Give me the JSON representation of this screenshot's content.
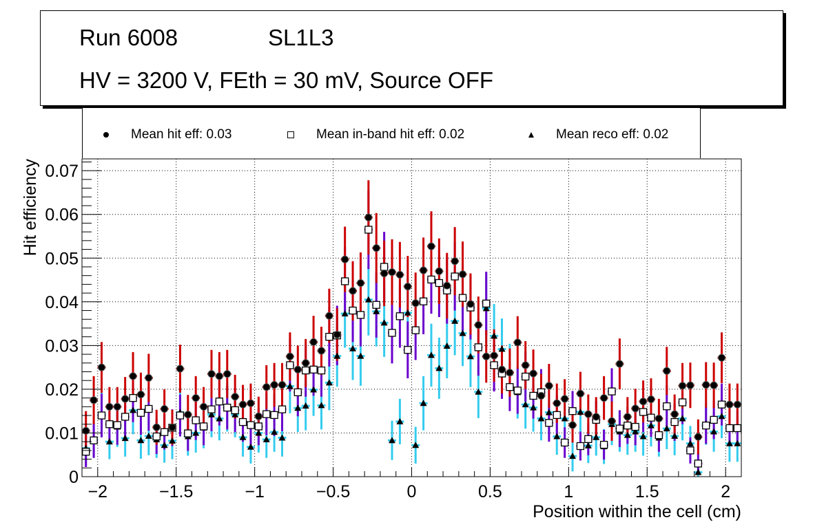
{
  "title_box": {
    "line1_left": "Run 6008",
    "line1_right": "SL1L3",
    "line2": "HV = 3200 V, FEth = 30 mV, Source OFF"
  },
  "legend": {
    "items": [
      {
        "marker": "filled-circle",
        "label": "Mean hit  eff: 0.03"
      },
      {
        "marker": "open-square",
        "label": "Mean in-band hit eff: 0.02"
      },
      {
        "marker": "filled-triangle",
        "label": "Mean reco eff: 0.02"
      }
    ]
  },
  "chart_data": {
    "type": "scatter",
    "title": "Run 6008 SL1L3 — HV = 3200 V, FEth = 30 mV, Source OFF",
    "xlabel": "Position within the cell (cm)",
    "ylabel": "Hit efficiency",
    "xlim": [
      -2.1,
      2.1
    ],
    "ylim": [
      0,
      0.0727
    ],
    "xticks": [
      -2,
      -1.5,
      -1,
      -0.5,
      0,
      0.5,
      1,
      1.5,
      2
    ],
    "xtick_labels": [
      "−2",
      "−1.5",
      "−1",
      "−0.5",
      "0",
      "0.5",
      "1",
      "1.5",
      "2"
    ],
    "yticks": [
      0,
      0.01,
      0.02,
      0.03,
      0.04,
      0.05,
      0.06,
      0.07
    ],
    "ytick_labels": [
      "0",
      "0.01",
      "0.02",
      "0.03",
      "0.04",
      "0.05",
      "0.06",
      "0.07"
    ],
    "grid": true,
    "legend_position": "top",
    "x": [
      -2.075,
      -2.025,
      -1.975,
      -1.925,
      -1.875,
      -1.825,
      -1.775,
      -1.725,
      -1.675,
      -1.625,
      -1.575,
      -1.525,
      -1.475,
      -1.425,
      -1.375,
      -1.325,
      -1.275,
      -1.225,
      -1.175,
      -1.125,
      -1.075,
      -1.025,
      -0.975,
      -0.925,
      -0.875,
      -0.825,
      -0.775,
      -0.725,
      -0.675,
      -0.625,
      -0.575,
      -0.525,
      -0.475,
      -0.425,
      -0.375,
      -0.325,
      -0.275,
      -0.225,
      -0.175,
      -0.125,
      -0.075,
      -0.025,
      0.025,
      0.075,
      0.125,
      0.175,
      0.225,
      0.275,
      0.325,
      0.375,
      0.425,
      0.475,
      0.525,
      0.575,
      0.625,
      0.675,
      0.725,
      0.775,
      0.825,
      0.875,
      0.925,
      0.975,
      1.025,
      1.075,
      1.125,
      1.175,
      1.225,
      1.275,
      1.325,
      1.375,
      1.425,
      1.475,
      1.525,
      1.575,
      1.625,
      1.675,
      1.725,
      1.775,
      1.825,
      1.875,
      1.925,
      1.975,
      2.025,
      2.075
    ],
    "series": [
      {
        "name": "Mean hit  eff: 0.03",
        "marker": "filled-circle",
        "error_color": "#cc0000",
        "values": [
          0.0105,
          0.0175,
          0.025,
          0.016,
          0.016,
          0.0178,
          0.023,
          0.0188,
          0.0226,
          0.0113,
          0.0155,
          0.0113,
          0.0247,
          0.0142,
          0.018,
          0.016,
          0.0235,
          0.023,
          0.0235,
          0.0183,
          0.0165,
          0.0168,
          0.0138,
          0.0205,
          0.021,
          0.021,
          0.0275,
          0.0245,
          0.026,
          0.0308,
          0.0288,
          0.0368,
          0.0325,
          0.0497,
          0.0425,
          0.0443,
          0.0593,
          0.0523,
          0.0465,
          0.0468,
          0.0462,
          0.0435,
          0.0397,
          0.0472,
          0.0527,
          0.047,
          0.0437,
          0.0493,
          0.0463,
          0.0395,
          0.0347,
          0.0275,
          0.0277,
          0.0245,
          0.0238,
          0.0307,
          0.0255,
          0.0236,
          0.0185,
          0.0208,
          0.0168,
          0.0178,
          0.0118,
          0.019,
          0.0143,
          0.0137,
          0.018,
          0.0127,
          0.0258,
          0.0137,
          0.0156,
          0.0172,
          0.0177,
          0.0133,
          0.0242,
          0.0143,
          0.0208,
          0.0209,
          0.0091,
          0.021,
          0.0209,
          0.0272,
          0.0165,
          0.0165
        ],
        "errors": [
          0.0045,
          0.0055,
          0.0058,
          0.0045,
          0.0045,
          0.005,
          0.0055,
          0.005,
          0.0055,
          0.004,
          0.0045,
          0.004,
          0.0055,
          0.0045,
          0.005,
          0.0045,
          0.0055,
          0.0055,
          0.0055,
          0.005,
          0.0045,
          0.0045,
          0.0045,
          0.005,
          0.005,
          0.005,
          0.0055,
          0.0055,
          0.0055,
          0.006,
          0.0055,
          0.0062,
          0.006,
          0.0075,
          0.0068,
          0.007,
          0.0085,
          0.008,
          0.0075,
          0.0075,
          0.0075,
          0.007,
          0.007,
          0.0075,
          0.008,
          0.0075,
          0.0075,
          0.0078,
          0.0075,
          0.007,
          0.0065,
          0.006,
          0.006,
          0.0055,
          0.0055,
          0.006,
          0.0055,
          0.0055,
          0.005,
          0.005,
          0.0045,
          0.0045,
          0.004,
          0.005,
          0.0045,
          0.0045,
          0.005,
          0.0045,
          0.0058,
          0.0045,
          0.0045,
          0.0048,
          0.0048,
          0.0045,
          0.0055,
          0.0045,
          0.0052,
          0.0052,
          0.004,
          0.0052,
          0.0052,
          0.0058,
          0.0048,
          0.0048
        ]
      },
      {
        "name": "Mean in-band hit eff: 0.02",
        "marker": "open-square",
        "error_color": "#6a00cc",
        "values": [
          0.0057,
          0.0083,
          0.014,
          0.012,
          0.0118,
          0.0137,
          0.018,
          0.0146,
          0.0155,
          0.0092,
          0.0102,
          0.0112,
          0.014,
          0.0099,
          0.0129,
          0.0115,
          0.0154,
          0.0172,
          0.0158,
          0.0152,
          0.0125,
          0.0118,
          0.0115,
          0.0143,
          0.0141,
          0.0154,
          0.0255,
          0.0193,
          0.0243,
          0.0245,
          0.0243,
          0.032,
          0.0323,
          0.0447,
          0.038,
          0.037,
          0.0565,
          0.0393,
          0.048,
          0.0329,
          0.0367,
          0.029,
          0.0335,
          0.0401,
          0.0451,
          0.0443,
          0.0426,
          0.0458,
          0.0409,
          0.0387,
          0.0296,
          0.0396,
          0.0255,
          0.0236,
          0.0205,
          0.0197,
          0.0229,
          0.0185,
          0.0193,
          0.0123,
          0.0141,
          0.0078,
          0.015,
          0.007,
          0.0086,
          0.013,
          0.0073,
          0.0195,
          0.011,
          0.0117,
          0.0114,
          0.0148,
          0.0135,
          0.0095,
          0.0161,
          0.0125,
          0.017,
          0.006,
          0.003,
          0.0117,
          0.013,
          0.0165,
          0.0111,
          0.0111
        ],
        "errors": [
          0.0035,
          0.004,
          0.005,
          0.0045,
          0.0045,
          0.0048,
          0.0055,
          0.005,
          0.005,
          0.004,
          0.004,
          0.0042,
          0.0048,
          0.004,
          0.0045,
          0.0043,
          0.005,
          0.0055,
          0.005,
          0.005,
          0.0045,
          0.0045,
          0.0043,
          0.0048,
          0.0048,
          0.005,
          0.006,
          0.0055,
          0.006,
          0.006,
          0.006,
          0.0068,
          0.0068,
          0.0078,
          0.0072,
          0.0072,
          0.009,
          0.0075,
          0.008,
          0.007,
          0.0072,
          0.0065,
          0.0068,
          0.0075,
          0.0078,
          0.0078,
          0.0076,
          0.0078,
          0.0075,
          0.0073,
          0.0065,
          0.0073,
          0.006,
          0.0058,
          0.0055,
          0.0053,
          0.0057,
          0.0052,
          0.0053,
          0.0043,
          0.0045,
          0.0035,
          0.0046,
          0.0033,
          0.0037,
          0.0043,
          0.0034,
          0.0053,
          0.0042,
          0.0042,
          0.0042,
          0.0046,
          0.0044,
          0.0038,
          0.0048,
          0.0043,
          0.005,
          0.003,
          0.0025,
          0.0042,
          0.0044,
          0.0048,
          0.0041,
          0.0041
        ]
      },
      {
        "name": "Mean reco eff: 0.02",
        "marker": "filled-triangle",
        "error_color": "#33ccee",
        "values": [
          0.0065,
          0.0085,
          0.0142,
          0.008,
          0.0114,
          0.0088,
          0.0152,
          0.0083,
          0.0093,
          0.0085,
          0.0072,
          0.0082,
          0.0147,
          0.0092,
          0.01,
          0.0112,
          0.0142,
          0.0133,
          0.0158,
          0.0142,
          0.009,
          0.0068,
          0.01,
          0.0085,
          0.0102,
          0.0089,
          0.0207,
          0.0157,
          0.0162,
          0.0199,
          0.0163,
          0.0215,
          0.0276,
          0.0373,
          0.0293,
          0.0276,
          0.0405,
          0.0378,
          0.0352,
          0.0083,
          0.0126,
          0.0375,
          0.0072,
          0.0168,
          0.0278,
          0.0248,
          0.0299,
          0.0356,
          0.0328,
          0.0275,
          0.0194,
          0.0385,
          0.0322,
          0.0292,
          0.0238,
          0.0193,
          0.0165,
          0.0158,
          0.0133,
          0.0147,
          0.0092,
          0.0133,
          0.0047,
          0.0148,
          0.0071,
          0.009,
          0.0069,
          0.012,
          0.0103,
          0.0095,
          0.0103,
          0.0092,
          0.0117,
          0.0089,
          0.011,
          0.0093,
          0.0133,
          0.0076,
          0.001,
          0.0121,
          0.0103,
          0.0138,
          0.0076,
          0.0076
        ],
        "errors": [
          0.004,
          0.0042,
          0.005,
          0.004,
          0.0046,
          0.0042,
          0.0055,
          0.0042,
          0.0044,
          0.0042,
          0.004,
          0.0042,
          0.0055,
          0.0044,
          0.0045,
          0.0047,
          0.0052,
          0.005,
          0.0055,
          0.0052,
          0.0044,
          0.0038,
          0.0045,
          0.0042,
          0.0045,
          0.0043,
          0.0062,
          0.0055,
          0.0056,
          0.006,
          0.0055,
          0.0063,
          0.007,
          0.0078,
          0.0072,
          0.0068,
          0.0082,
          0.008,
          0.0078,
          0.0045,
          0.0052,
          0.008,
          0.0042,
          0.0062,
          0.0072,
          0.007,
          0.0074,
          0.0078,
          0.0075,
          0.007,
          0.006,
          0.008,
          0.0073,
          0.007,
          0.0066,
          0.006,
          0.0055,
          0.0055,
          0.005,
          0.0053,
          0.0042,
          0.005,
          0.0035,
          0.0053,
          0.004,
          0.0042,
          0.004,
          0.0048,
          0.0046,
          0.0045,
          0.0046,
          0.0044,
          0.0048,
          0.0043,
          0.0047,
          0.0044,
          0.005,
          0.004,
          0.002,
          0.0048,
          0.0046,
          0.005,
          0.0042,
          0.0042
        ]
      }
    ]
  }
}
